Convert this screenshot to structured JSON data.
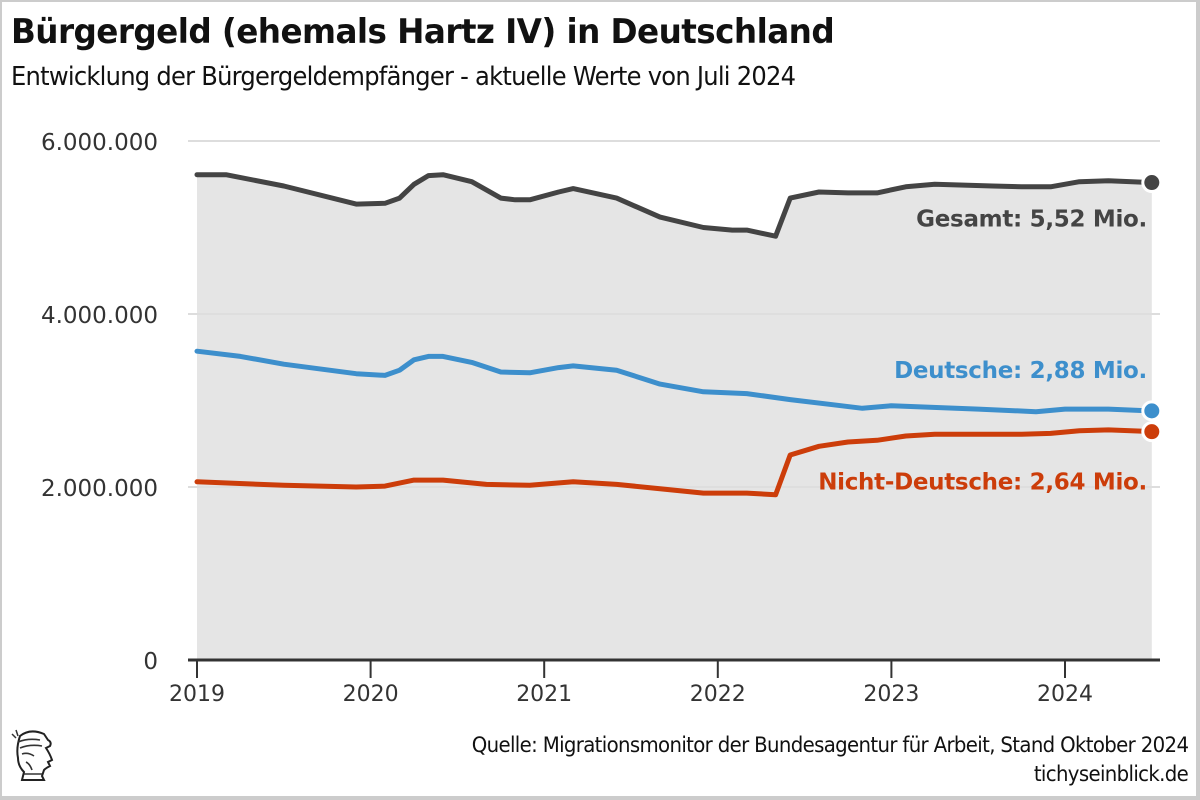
{
  "header": {
    "title": "Bürgergeld (ehemals Hartz IV) in Deutschland",
    "subtitle": "Entwicklung der Bürgergeldempfänger - aktuelle Werte von Juli 2024"
  },
  "footer": {
    "source": "Quelle: Migrationsmonitor der Bundesagentur für Arbeit, Stand Oktober 2024",
    "site": "tichyseinblick.de",
    "logo_icon": "hermes-head-logo-icon"
  },
  "colors": {
    "gesamt": "#444444",
    "deutsche": "#3d8fcc",
    "nicht_deutsche": "#cc3d0a",
    "area_fill": "#e5e5e5",
    "grid": "#e0e0e0",
    "axis": "#333333"
  },
  "chart_data": {
    "type": "line",
    "title": "Bürgergeld (ehemals Hartz IV) in Deutschland",
    "subtitle": "Entwicklung der Bürgergeldempfänger - aktuelle Werte von Juli 2024",
    "xlabel": "",
    "ylabel": "",
    "xlim": [
      2019.0,
      2024.5
    ],
    "ylim": [
      0,
      6000000
    ],
    "grid": true,
    "x_ticks": [
      2019,
      2020,
      2021,
      2022,
      2023,
      2024
    ],
    "x_tick_labels": [
      "2019",
      "2020",
      "2021",
      "2022",
      "2023",
      "2024"
    ],
    "y_ticks": [
      0,
      2000000,
      4000000,
      6000000
    ],
    "y_tick_labels": [
      "0",
      "2.000.000",
      "4.000.000",
      "6.000.000"
    ],
    "area_under": "Gesamt",
    "series": [
      {
        "name": "Gesamt",
        "color_key": "gesamt",
        "end_label": "Gesamt: 5,52 Mio.",
        "points": [
          [
            2019.0,
            5610000
          ],
          [
            2019.167,
            5610000
          ],
          [
            2019.5,
            5480000
          ],
          [
            2019.917,
            5270000
          ],
          [
            2020.083,
            5280000
          ],
          [
            2020.167,
            5340000
          ],
          [
            2020.25,
            5500000
          ],
          [
            2020.333,
            5600000
          ],
          [
            2020.417,
            5610000
          ],
          [
            2020.583,
            5530000
          ],
          [
            2020.75,
            5340000
          ],
          [
            2020.833,
            5320000
          ],
          [
            2020.917,
            5320000
          ],
          [
            2021.083,
            5410000
          ],
          [
            2021.167,
            5450000
          ],
          [
            2021.417,
            5340000
          ],
          [
            2021.667,
            5120000
          ],
          [
            2021.917,
            5000000
          ],
          [
            2022.083,
            4970000
          ],
          [
            2022.167,
            4970000
          ],
          [
            2022.333,
            4900000
          ],
          [
            2022.417,
            5340000
          ],
          [
            2022.583,
            5410000
          ],
          [
            2022.75,
            5400000
          ],
          [
            2022.917,
            5400000
          ],
          [
            2023.083,
            5470000
          ],
          [
            2023.25,
            5500000
          ],
          [
            2023.417,
            5490000
          ],
          [
            2023.583,
            5480000
          ],
          [
            2023.75,
            5470000
          ],
          [
            2023.917,
            5470000
          ],
          [
            2024.083,
            5530000
          ],
          [
            2024.25,
            5540000
          ],
          [
            2024.5,
            5520000
          ]
        ]
      },
      {
        "name": "Deutsche",
        "color_key": "deutsche",
        "end_label": "Deutsche: 2,88 Mio.",
        "points": [
          [
            2019.0,
            3570000
          ],
          [
            2019.25,
            3510000
          ],
          [
            2019.5,
            3420000
          ],
          [
            2019.917,
            3310000
          ],
          [
            2020.083,
            3290000
          ],
          [
            2020.167,
            3350000
          ],
          [
            2020.25,
            3470000
          ],
          [
            2020.333,
            3510000
          ],
          [
            2020.417,
            3510000
          ],
          [
            2020.583,
            3440000
          ],
          [
            2020.75,
            3330000
          ],
          [
            2020.917,
            3320000
          ],
          [
            2021.083,
            3380000
          ],
          [
            2021.167,
            3400000
          ],
          [
            2021.417,
            3350000
          ],
          [
            2021.667,
            3190000
          ],
          [
            2021.917,
            3100000
          ],
          [
            2022.167,
            3080000
          ],
          [
            2022.417,
            3010000
          ],
          [
            2022.667,
            2950000
          ],
          [
            2022.833,
            2910000
          ],
          [
            2023.0,
            2940000
          ],
          [
            2023.5,
            2900000
          ],
          [
            2023.833,
            2870000
          ],
          [
            2024.0,
            2900000
          ],
          [
            2024.25,
            2900000
          ],
          [
            2024.5,
            2880000
          ]
        ]
      },
      {
        "name": "Nicht-Deutsche",
        "color_key": "nicht_deutsche",
        "end_label": "Nicht-Deutsche: 2,64 Mio.",
        "points": [
          [
            2019.0,
            2060000
          ],
          [
            2019.5,
            2020000
          ],
          [
            2019.917,
            2000000
          ],
          [
            2020.083,
            2010000
          ],
          [
            2020.25,
            2080000
          ],
          [
            2020.417,
            2080000
          ],
          [
            2020.667,
            2030000
          ],
          [
            2020.917,
            2020000
          ],
          [
            2021.167,
            2060000
          ],
          [
            2021.417,
            2030000
          ],
          [
            2021.667,
            1980000
          ],
          [
            2021.917,
            1930000
          ],
          [
            2022.167,
            1930000
          ],
          [
            2022.333,
            1910000
          ],
          [
            2022.417,
            2370000
          ],
          [
            2022.583,
            2470000
          ],
          [
            2022.75,
            2520000
          ],
          [
            2022.917,
            2540000
          ],
          [
            2023.083,
            2590000
          ],
          [
            2023.25,
            2610000
          ],
          [
            2023.5,
            2610000
          ],
          [
            2023.75,
            2610000
          ],
          [
            2023.917,
            2620000
          ],
          [
            2024.083,
            2650000
          ],
          [
            2024.25,
            2660000
          ],
          [
            2024.5,
            2640000
          ]
        ]
      }
    ]
  }
}
